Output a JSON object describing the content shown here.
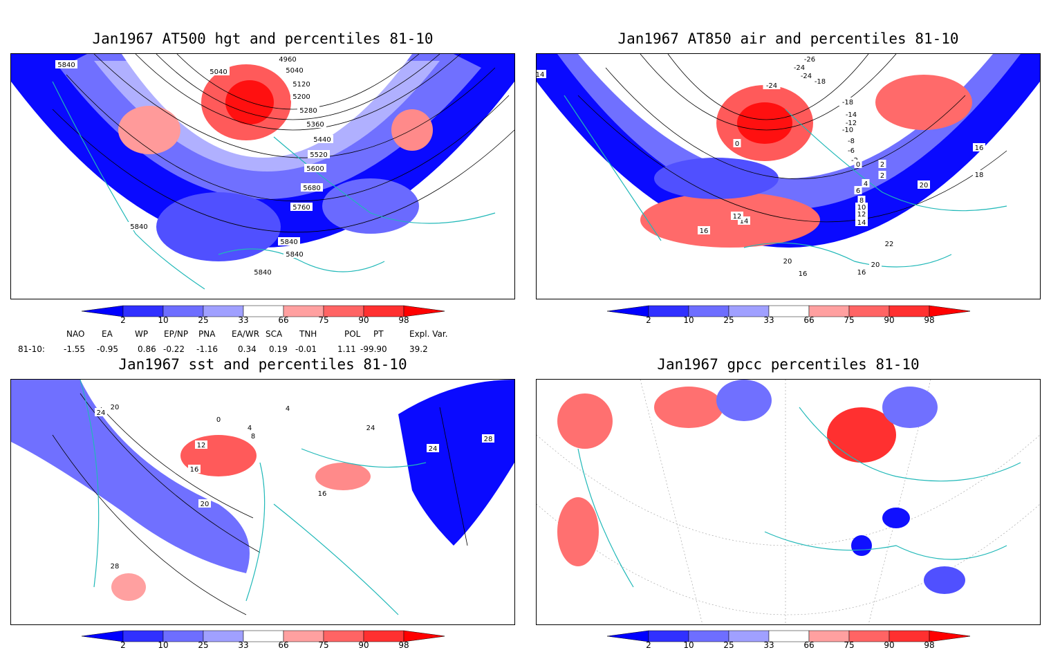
{
  "panels": [
    {
      "id": "p1",
      "title": "Jan1967 AT500 hgt and percentiles 81-10",
      "contour_labels": [
        "4960",
        "5040",
        "5040",
        "5120",
        "5200",
        "5280",
        "5360",
        "5440",
        "5520",
        "5600",
        "5680",
        "5760",
        "5840",
        "5840",
        "5840",
        "5840",
        "5840"
      ]
    },
    {
      "id": "p2",
      "title": "Jan1967 AT850 air and percentiles 81-10",
      "contour_labels": [
        "-26",
        "-24",
        "-24",
        "-24",
        "-18",
        "-18",
        "-14",
        "-12",
        "-10",
        "-8",
        "-6",
        "-2",
        "0",
        "2",
        "2",
        "4",
        "6",
        "8",
        "10",
        "12",
        "14",
        "14",
        "16",
        "16",
        "16",
        "16",
        "18",
        "20",
        "20",
        "20",
        "22",
        "14",
        "12",
        "0"
      ]
    },
    {
      "id": "p3",
      "title": "Jan1967 sst and percentiles 81-10",
      "contour_labels": [
        "24",
        "20",
        "0",
        "4",
        "8",
        "12",
        "16",
        "20",
        "24",
        "28",
        "28",
        "4",
        "16",
        "24"
      ]
    },
    {
      "id": "p4",
      "title": "Jan1967 gpcc percentiles 81-10",
      "contour_labels": []
    }
  ],
  "colorbar": {
    "ticks": [
      "2",
      "10",
      "25",
      "33",
      "66",
      "75",
      "90",
      "98"
    ],
    "colors": [
      "#0000ff",
      "#3030ff",
      "#6e6eff",
      "#a0a0ff",
      "#ffffff",
      "#ffa0a0",
      "#ff6464",
      "#ff3030",
      "#ff0000"
    ]
  },
  "teleconnections": {
    "headers": [
      "NAO",
      "EA",
      "WP",
      "EP/NP",
      "PNA",
      "EA/WR",
      "SCA",
      "TNH",
      "POL",
      "PT",
      "Expl. Var."
    ],
    "row_label": "81-10:",
    "values": [
      "-1.55",
      "-0.95",
      "0.86",
      "-0.22",
      "-1.16",
      "0.34",
      "0.19",
      "-0.01",
      "1.11",
      "-99.90",
      "39.2"
    ]
  },
  "map_colors": {
    "coast": "#20b8b8",
    "contour": "#000000",
    "grid": "#999999"
  }
}
